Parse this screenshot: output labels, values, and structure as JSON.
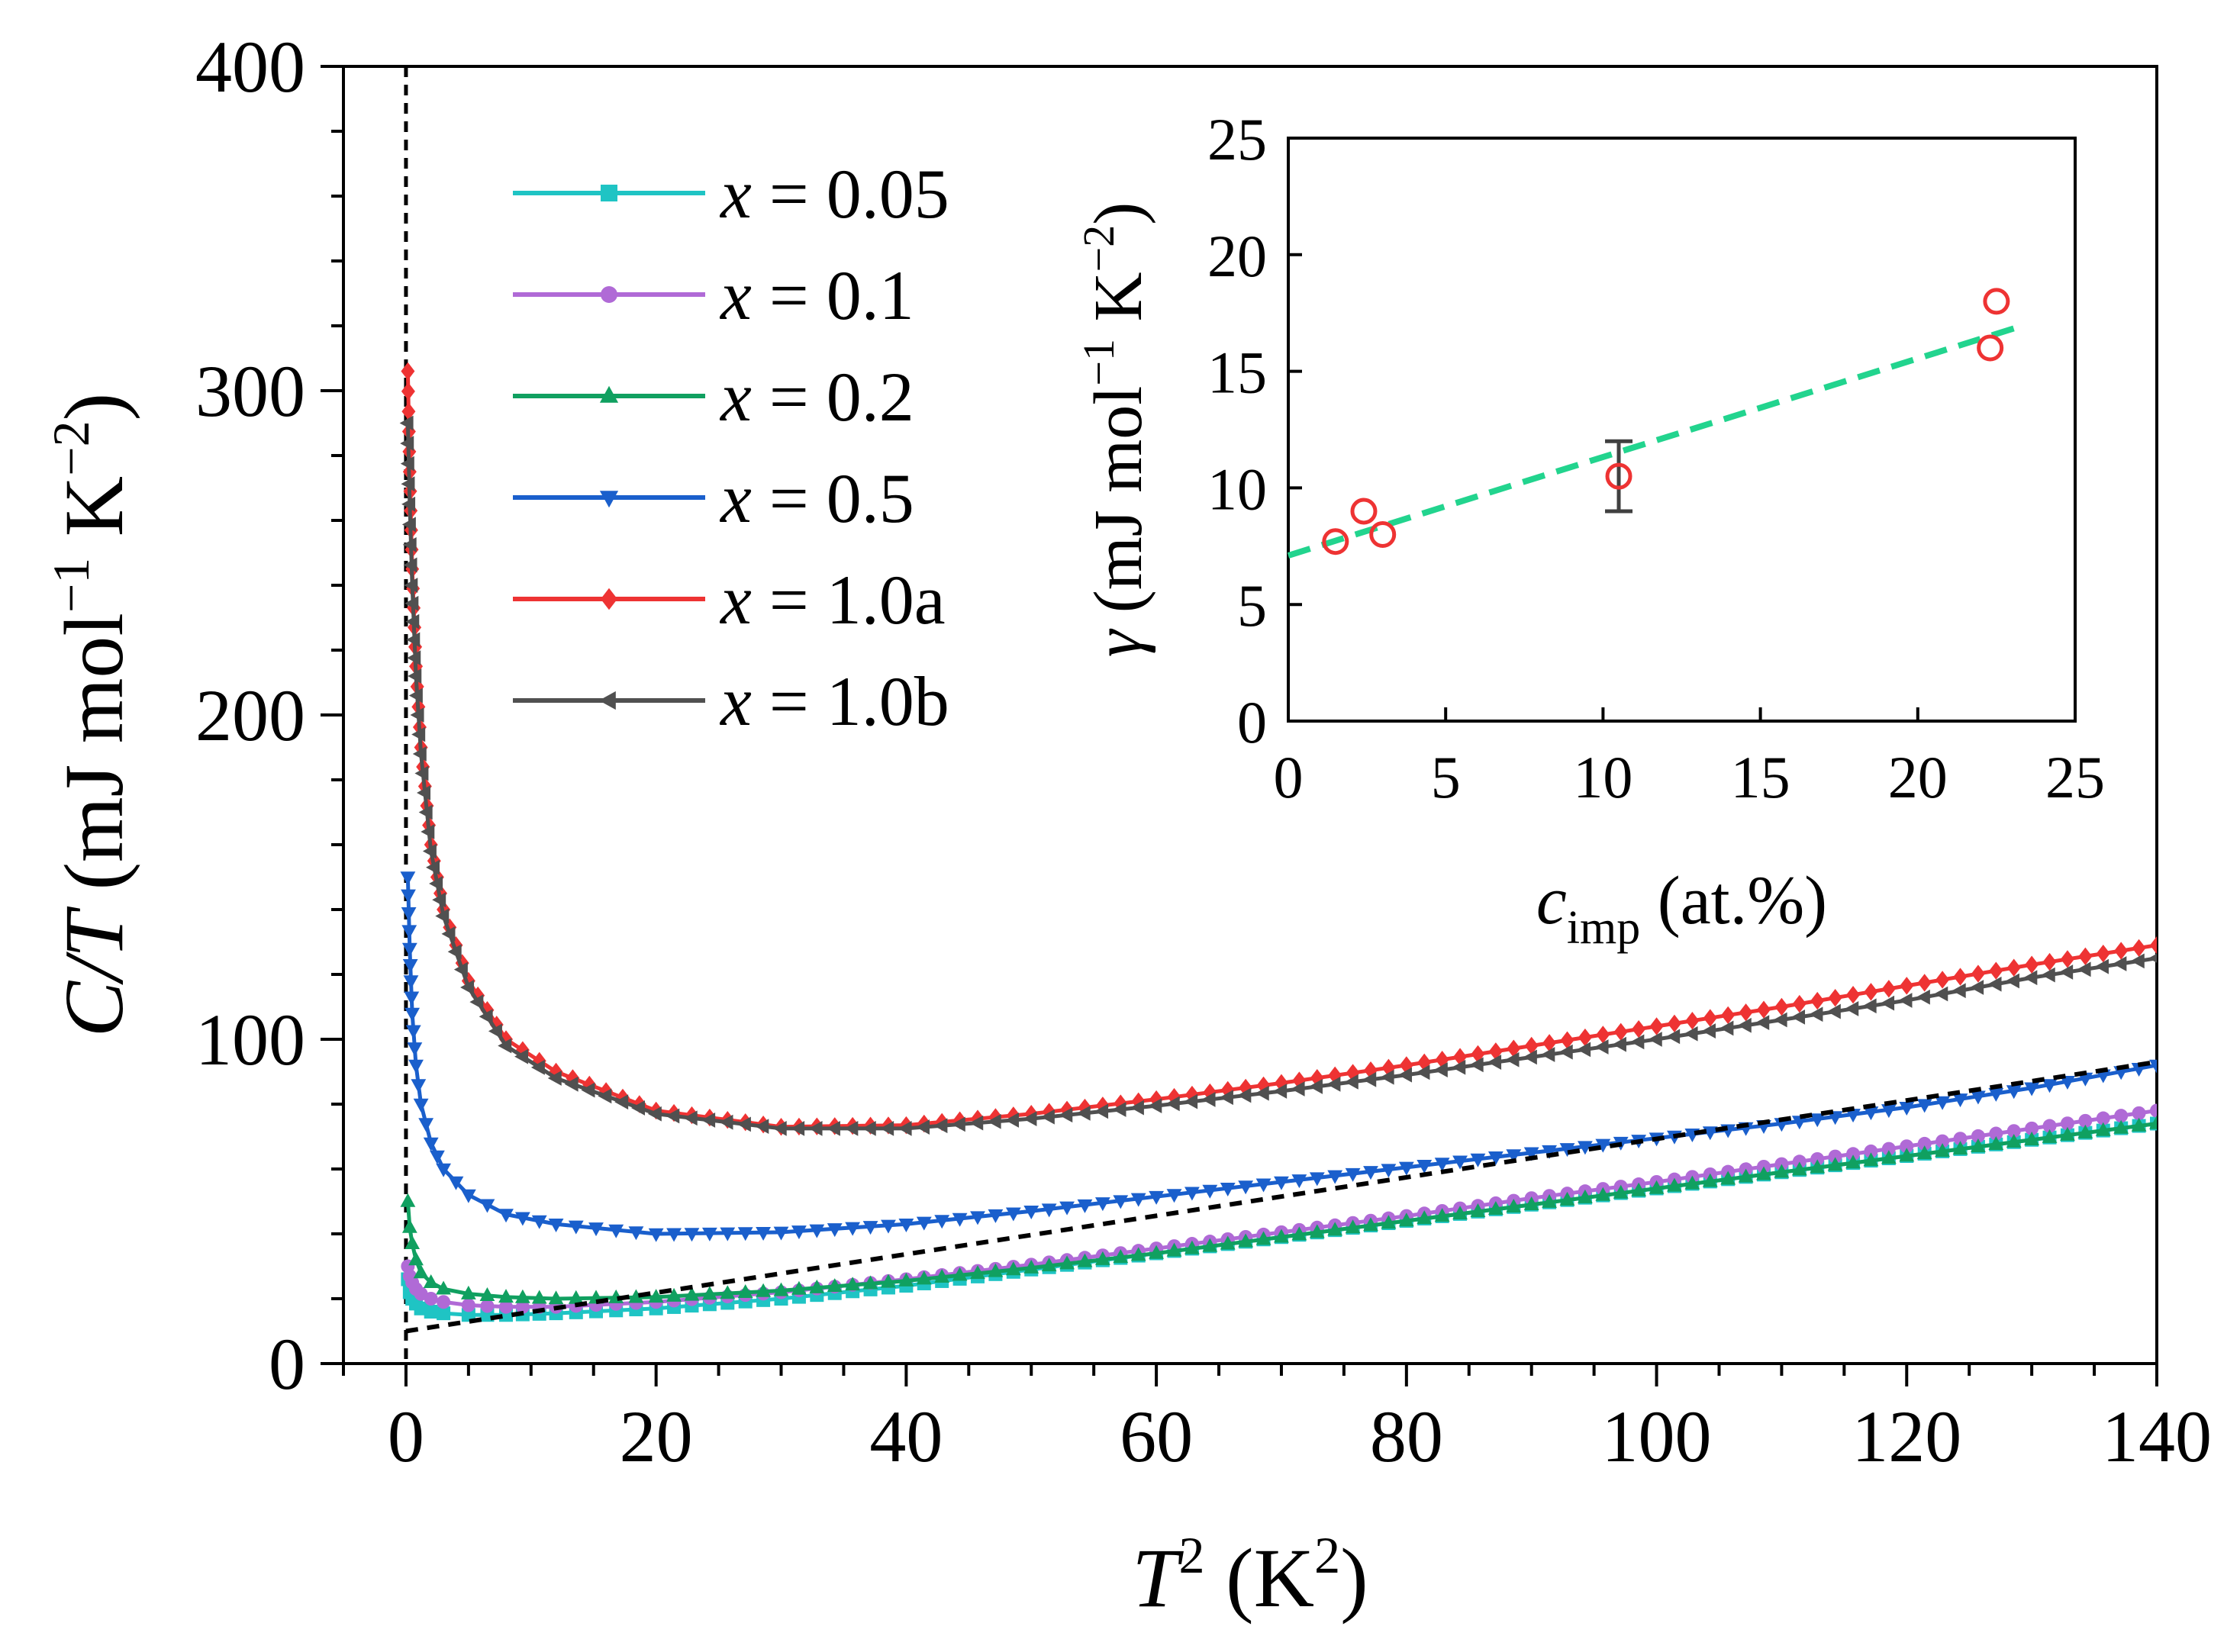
{
  "chart_data": [
    {
      "type": "line",
      "title": "",
      "xlabel": {
        "main": "T",
        "sup": "2",
        "unit_open": " (K",
        "unit_sup": "2",
        "unit_close": ")"
      },
      "ylabel": {
        "main": "C/T",
        "unit": " (mJ mol",
        "sup1": "−1",
        "mid": " K",
        "sup2": "−2",
        "close": ")"
      },
      "xlim": [
        -5,
        140
      ],
      "ylim": [
        0,
        400
      ],
      "xticks": [
        0,
        20,
        40,
        60,
        80,
        100,
        120,
        140
      ],
      "yticks": [
        0,
        100,
        200,
        300,
        400
      ],
      "legend_position": "top-left",
      "vertical_reference_x": 0,
      "reference_line": {
        "style": "dashed",
        "color": "#000000",
        "x": [
          0,
          140
        ],
        "y": [
          10,
          93
        ]
      },
      "series": [
        {
          "name": "x = 0.05",
          "legend_var": "x",
          "legend_rest": " = 0.05",
          "color": "#1fc4c4",
          "marker": "square",
          "x": [
            0.15,
            0.3,
            0.5,
            0.8,
            1.2,
            2,
            3,
            5,
            8,
            12,
            20,
            30,
            40,
            50,
            60,
            70,
            80,
            90,
            100,
            110,
            120,
            130,
            140
          ],
          "y": [
            26,
            22,
            20,
            18.5,
            17,
            16,
            15.5,
            15,
            15,
            15.5,
            17,
            20,
            24,
            29,
            34,
            39,
            44,
            49,
            54,
            59,
            64,
            69,
            74
          ]
        },
        {
          "name": "x = 0.1",
          "legend_var": "x",
          "legend_rest": " = 0.1",
          "color": "#b06ad6",
          "marker": "circle",
          "x": [
            0.15,
            0.3,
            0.5,
            0.8,
            1.2,
            2,
            3,
            5,
            8,
            12,
            20,
            30,
            40,
            50,
            60,
            70,
            80,
            90,
            100,
            110,
            120,
            130,
            140
          ],
          "y": [
            30,
            27,
            25,
            23,
            21.5,
            20,
            19,
            18,
            17.5,
            17.5,
            19,
            22,
            26,
            30.5,
            35.5,
            40.5,
            45.5,
            51,
            56,
            61.5,
            67,
            72.5,
            78
          ]
        },
        {
          "name": "x = 0.2",
          "legend_var": "x",
          "legend_rest": " = 0.2",
          "color": "#10a060",
          "marker": "triangle-up",
          "x": [
            0.15,
            0.3,
            0.5,
            0.8,
            1.2,
            2,
            3,
            5,
            8,
            12,
            20,
            30,
            40,
            50,
            60,
            70,
            80,
            90,
            100,
            110,
            120,
            130,
            140
          ],
          "y": [
            50,
            42,
            37,
            32,
            28,
            25,
            23,
            21.5,
            20.5,
            20,
            20.5,
            22.5,
            25.5,
            29.5,
            34,
            39,
            44,
            49,
            54,
            59,
            64,
            69,
            74
          ]
        },
        {
          "name": "x = 0.5",
          "legend_var": "x",
          "legend_rest": " = 0.5",
          "color": "#1a5fcc",
          "marker": "triangle-down",
          "x": [
            0.15,
            0.3,
            0.5,
            0.8,
            1.2,
            2,
            3,
            5,
            8,
            12,
            20,
            30,
            40,
            50,
            60,
            70,
            80,
            90,
            100,
            110,
            120,
            130,
            140
          ],
          "y": [
            150,
            128,
            108,
            92,
            80,
            68,
            60,
            52,
            46,
            43,
            40,
            40.5,
            43,
            47,
            51.5,
            56,
            60.5,
            65,
            69.5,
            74,
            79,
            85,
            92
          ]
        },
        {
          "name": "x = 1.0a",
          "legend_var": "x",
          "legend_rest": " = 1.0a",
          "color": "#ee3333",
          "marker": "diamond",
          "x": [
            0.15,
            0.3,
            0.5,
            0.8,
            1.2,
            2,
            3,
            5,
            8,
            12,
            20,
            30,
            40,
            50,
            60,
            70,
            80,
            90,
            100,
            110,
            120,
            130,
            140
          ],
          "y": [
            306,
            275,
            245,
            215,
            190,
            160,
            140,
            118,
            100,
            90,
            78,
            73,
            73.5,
            77,
            81.5,
            86.5,
            92,
            98,
            104,
            110,
            116.5,
            123,
            129
          ]
        },
        {
          "name": "x = 1.0b",
          "legend_var": "x",
          "legend_rest": " = 1.0b",
          "color": "#505050",
          "marker": "triangle-left",
          "x": [
            0.15,
            0.3,
            0.5,
            0.8,
            1.2,
            2,
            3,
            5,
            8,
            12,
            20,
            30,
            40,
            50,
            60,
            70,
            80,
            90,
            100,
            110,
            120,
            130,
            140
          ],
          "y": [
            290,
            265,
            240,
            212,
            188,
            158,
            138,
            116,
            98,
            88,
            77,
            72.5,
            72.5,
            75.5,
            79.5,
            84,
            89,
            94.5,
            100,
            106,
            112,
            119,
            125
          ]
        }
      ]
    },
    {
      "type": "scatter",
      "title": "",
      "inset": true,
      "legend_position": "none",
      "xlabel": {
        "main": "c",
        "sub": "imp",
        "unit": " (at.%)"
      },
      "ylabel": {
        "main": "γ",
        "unit": " (mJ mol",
        "sup1": "−1",
        "mid": " K",
        "sup2": "−2",
        "close": ")"
      },
      "xlim": [
        0,
        25
      ],
      "ylim": [
        0,
        25
      ],
      "xticks": [
        0,
        5,
        10,
        15,
        20,
        25
      ],
      "yticks": [
        0,
        5,
        10,
        15,
        20,
        25
      ],
      "points": {
        "x": [
          1.5,
          2.4,
          3.0,
          10.5,
          22.3,
          22.5
        ],
        "y": [
          7.7,
          9.0,
          8.0,
          10.5,
          16.0,
          18.0
        ],
        "color": "#ee3333",
        "marker": "open-circle"
      },
      "error_bars": [
        {
          "x": 10.5,
          "y": 10.5,
          "low": 9.0,
          "high": 12.0,
          "color": "#404040"
        }
      ],
      "fit_line": {
        "style": "dashed",
        "color": "#22d48e",
        "x": [
          0,
          23.2
        ],
        "y": [
          7.1,
          16.9
        ]
      }
    }
  ]
}
